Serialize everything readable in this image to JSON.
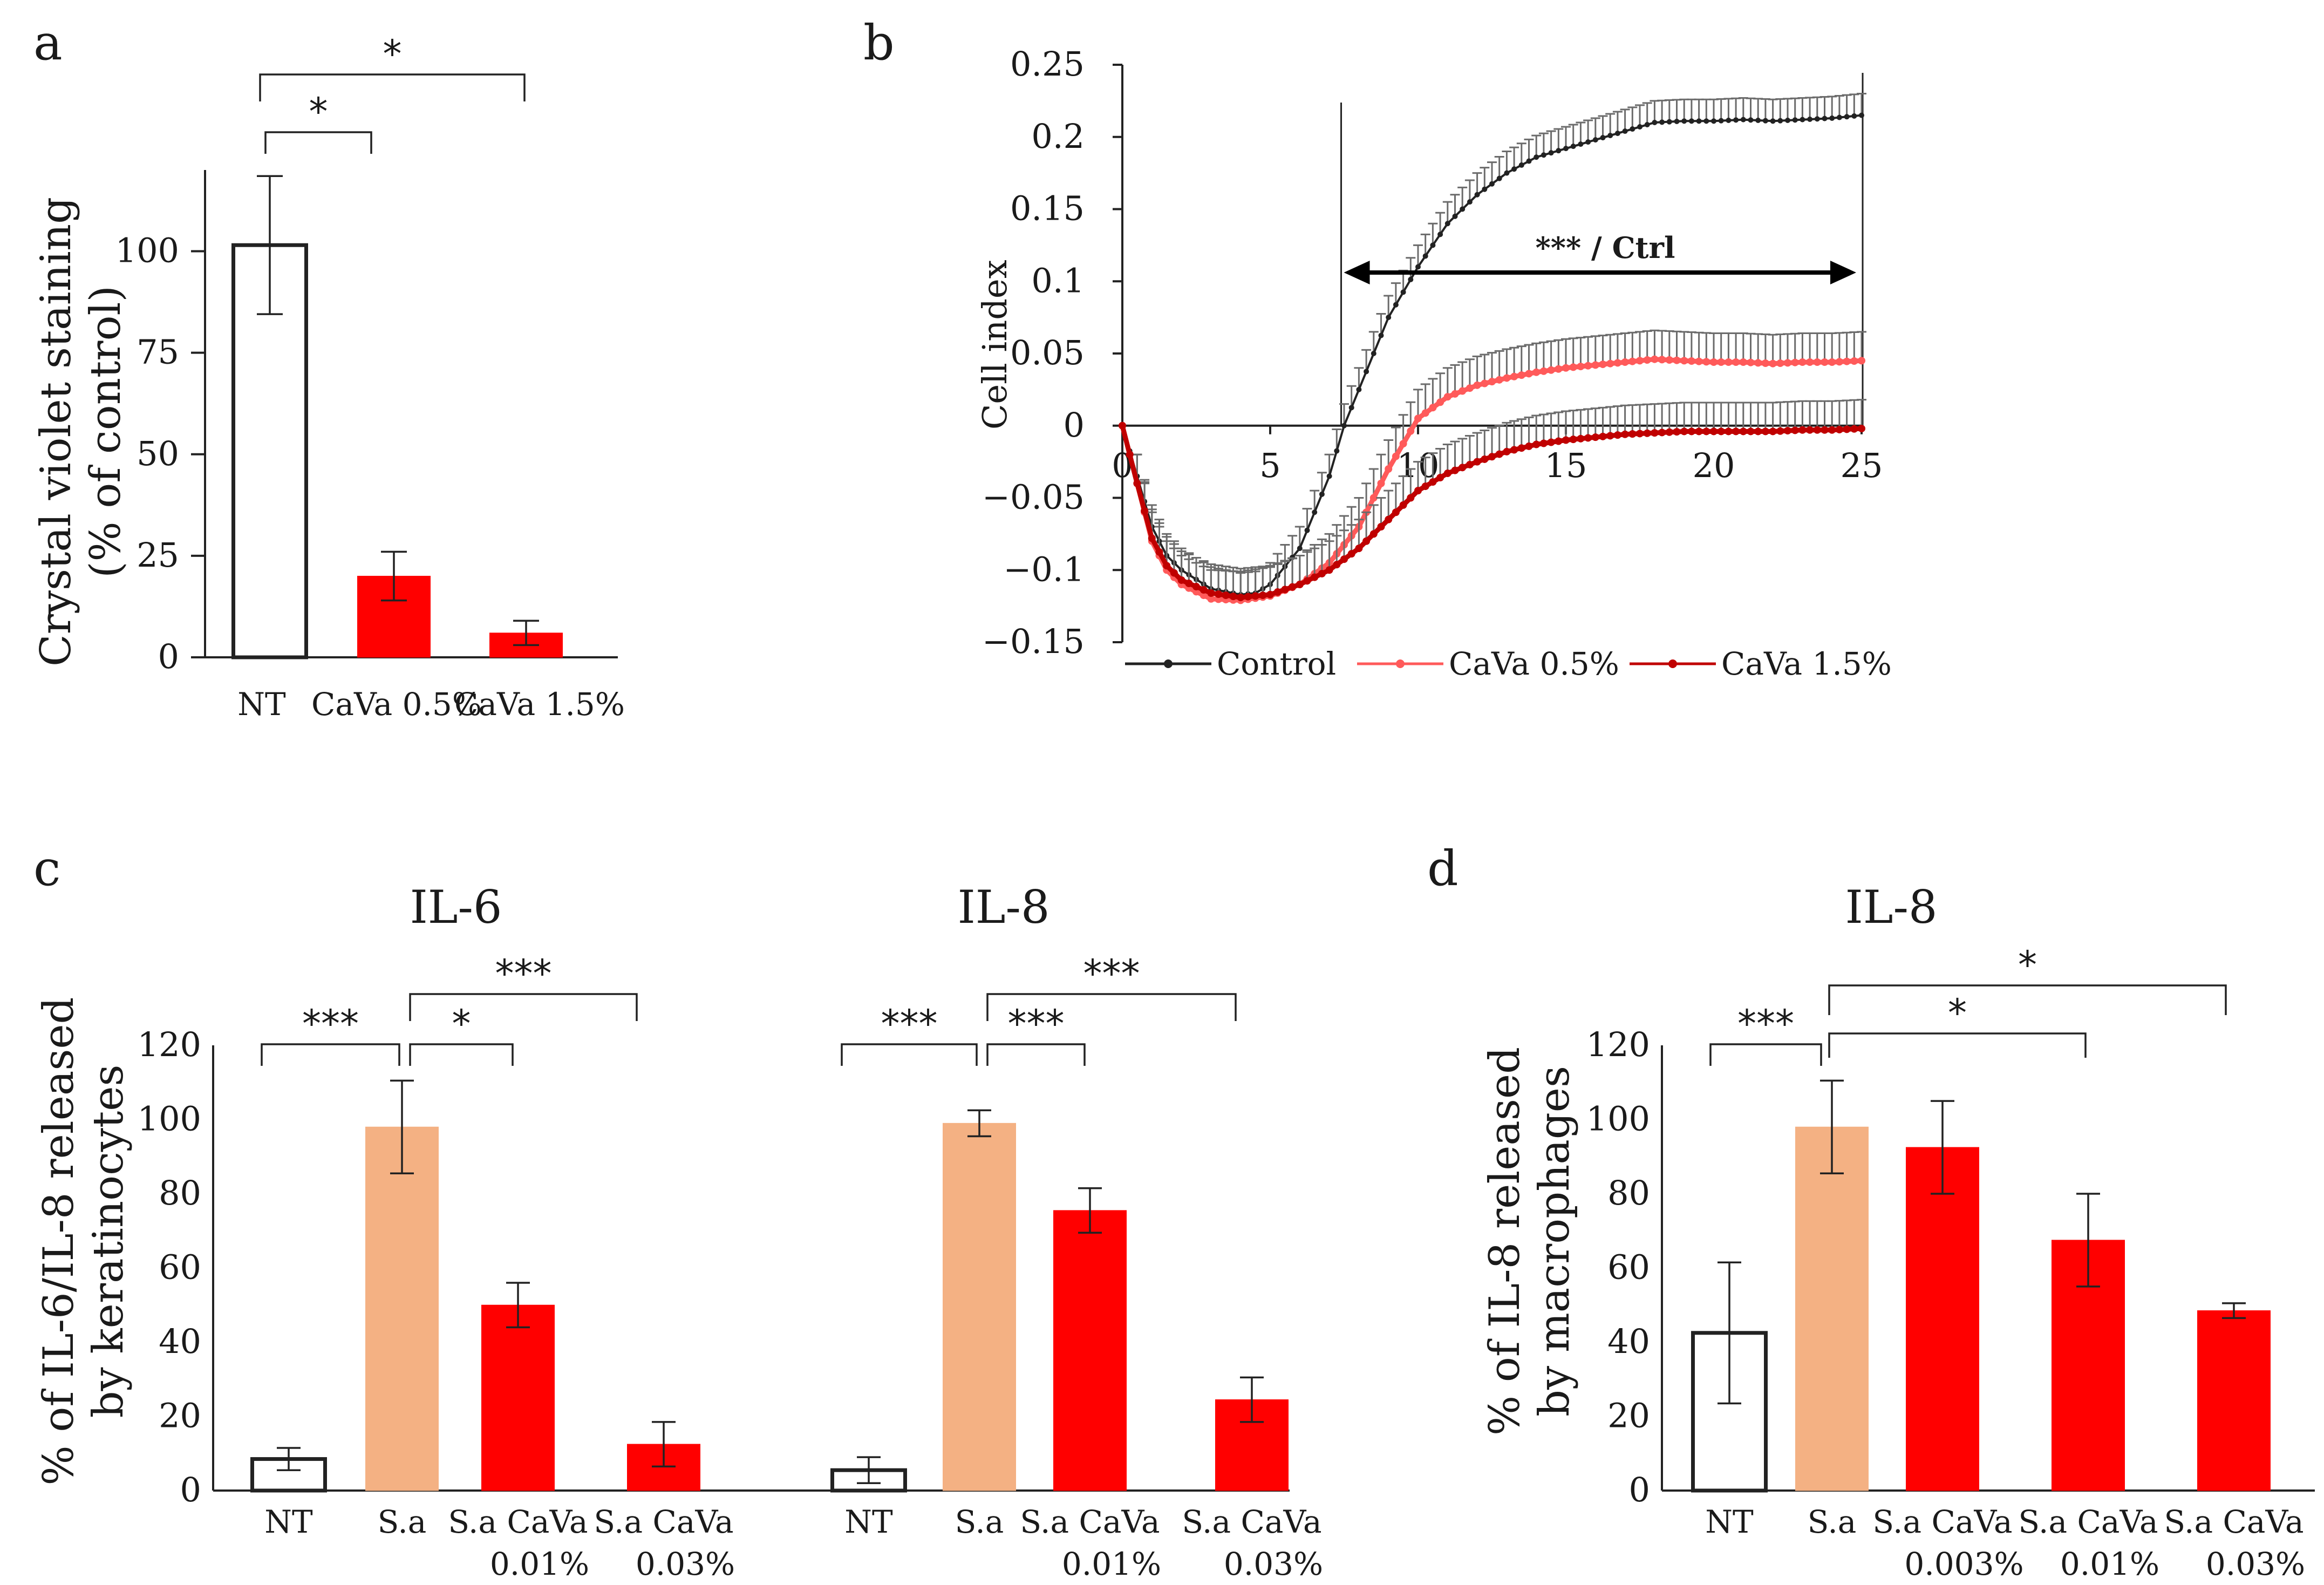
{
  "chart_data": [
    {
      "panel": "a",
      "type": "bar",
      "categories": [
        "NT",
        "CaVa 0.5%",
        "CaVa 1.5%"
      ],
      "values": [
        101.5,
        20,
        6
      ],
      "errors": [
        17,
        6,
        3
      ],
      "colors": [
        "#ffffff",
        "#ff0000",
        "#ff0000"
      ],
      "ylabel": [
        "Crystal violet staining",
        "(% of control)"
      ],
      "ylim": [
        0,
        120
      ],
      "yticks": [
        "0",
        "25",
        "50",
        "75",
        "100"
      ],
      "significance": [
        {
          "from": 0,
          "to": 1,
          "label": "*"
        },
        {
          "from": 0,
          "to": 2,
          "label": "*"
        }
      ]
    },
    {
      "panel": "b",
      "type": "line",
      "xlim": [
        0,
        25
      ],
      "ylim": [
        -0.15,
        0.25
      ],
      "xticks": [
        "0",
        "5",
        "10",
        "15",
        "20",
        "25"
      ],
      "yticks": [
        "-0.15",
        "-0.1",
        "-0.05",
        "0",
        "0.05",
        "0.1",
        "0.15",
        "0.2",
        "0.25"
      ],
      "ylabel": "Cell index",
      "annotation": "*** / Ctrl",
      "annotation_range": [
        7.4,
        25
      ],
      "series": [
        {
          "name": "Control",
          "color": "#222222",
          "x": [
            0,
            0.5,
            1,
            1.5,
            2,
            3,
            4,
            4.5,
            5,
            6,
            7,
            7.5,
            8,
            9,
            10,
            11,
            12,
            13,
            14,
            15,
            16,
            17,
            18,
            19,
            20,
            21,
            22,
            23,
            24,
            25
          ],
          "y": [
            0,
            -0.035,
            -0.07,
            -0.09,
            -0.1,
            -0.113,
            -0.117,
            -0.116,
            -0.11,
            -0.085,
            -0.035,
            0,
            0.025,
            0.075,
            0.11,
            0.14,
            0.16,
            0.175,
            0.186,
            0.192,
            0.198,
            0.204,
            0.21,
            0.211,
            0.211,
            0.212,
            0.211,
            0.212,
            0.213,
            0.215
          ],
          "err": 0.015
        },
        {
          "name": "CaVa 0.5%",
          "color": "#ff5a5a",
          "x": [
            0,
            0.5,
            1,
            1.5,
            2,
            3,
            4,
            5,
            6,
            7,
            8,
            9,
            10,
            11,
            12,
            13,
            14,
            15,
            16,
            17,
            18,
            19,
            20,
            21,
            22,
            23,
            24,
            25
          ],
          "y": [
            0,
            -0.04,
            -0.08,
            -0.1,
            -0.11,
            -0.12,
            -0.121,
            -0.118,
            -0.11,
            -0.095,
            -0.07,
            -0.03,
            0.005,
            0.02,
            0.028,
            0.033,
            0.037,
            0.04,
            0.042,
            0.044,
            0.046,
            0.045,
            0.044,
            0.044,
            0.043,
            0.044,
            0.044,
            0.045
          ],
          "err": 0.02
        },
        {
          "name": "CaVa 1.5%",
          "color": "#c00000",
          "x": [
            0,
            0.5,
            1,
            1.5,
            2,
            3,
            4,
            5,
            6,
            7,
            8,
            9,
            10,
            11,
            12,
            13,
            14,
            15,
            16,
            17,
            18,
            19,
            20,
            21,
            22,
            23,
            24,
            25
          ],
          "y": [
            0,
            -0.04,
            -0.078,
            -0.097,
            -0.107,
            -0.116,
            -0.119,
            -0.117,
            -0.11,
            -0.1,
            -0.085,
            -0.065,
            -0.045,
            -0.033,
            -0.025,
            -0.018,
            -0.013,
            -0.01,
            -0.008,
            -0.006,
            -0.005,
            -0.004,
            -0.004,
            -0.004,
            -0.004,
            -0.003,
            -0.003,
            -0.002
          ],
          "err": 0.02
        }
      ]
    },
    {
      "panel": "c",
      "type": "bar",
      "groups": [
        {
          "title": "IL-6",
          "categories": [
            "NT",
            "S.a",
            "S.a CaVa 0.01%",
            "S.a CaVa 0.03%"
          ],
          "values": [
            8.5,
            98,
            50,
            12.5
          ],
          "errors": [
            3,
            12.5,
            6,
            6
          ],
          "colors": [
            "#ffffff",
            "#f4b183",
            "#ff0000",
            "#ff0000"
          ],
          "significance": [
            {
              "from": 0,
              "to": 1,
              "label": "***"
            },
            {
              "from": 1,
              "to": 2,
              "label": "*"
            },
            {
              "from": 1,
              "to": 3,
              "label": "***"
            }
          ]
        },
        {
          "title": "IL-8",
          "categories": [
            "NT",
            "S.a",
            "S.a CaVa 0.01%",
            "S.a CaVa 0.03%"
          ],
          "values": [
            5.5,
            99,
            75.5,
            24.5
          ],
          "errors": [
            3.5,
            3.5,
            6,
            6
          ],
          "colors": [
            "#ffffff",
            "#f4b183",
            "#ff0000",
            "#ff0000"
          ],
          "significance": [
            {
              "from": 0,
              "to": 1,
              "label": "***"
            },
            {
              "from": 1,
              "to": 2,
              "label": "***"
            },
            {
              "from": 1,
              "to": 3,
              "label": "***"
            }
          ]
        }
      ],
      "ylabel": [
        "% of IL-6/IL-8 released",
        "by keratinocytes"
      ],
      "ylim": [
        0,
        120
      ],
      "yticks": [
        "0",
        "20",
        "40",
        "60",
        "80",
        "100",
        "120"
      ]
    },
    {
      "panel": "d",
      "type": "bar",
      "title": "IL-8",
      "categories": [
        "NT",
        "S.a",
        "S.a CaVa 0.003%",
        "S.a CaVa 0.01%",
        "S.a CaVa 0.03%"
      ],
      "values": [
        42.5,
        98,
        92.5,
        67.5,
        48.5
      ],
      "errors": [
        19,
        12.5,
        12.5,
        12.5,
        2
      ],
      "colors": [
        "#ffffff",
        "#f4b183",
        "#ff0000",
        "#ff0000",
        "#ff0000"
      ],
      "ylabel": [
        "% of IL-8 released",
        "by macrophages"
      ],
      "ylim": [
        0,
        120
      ],
      "yticks": [
        "0",
        "20",
        "40",
        "60",
        "80",
        "100",
        "120"
      ],
      "significance": [
        {
          "from": 0,
          "to": 1,
          "label": "***"
        },
        {
          "from": 1,
          "to": 3,
          "label": "*"
        },
        {
          "from": 1,
          "to": 4,
          "label": "*"
        }
      ]
    }
  ]
}
